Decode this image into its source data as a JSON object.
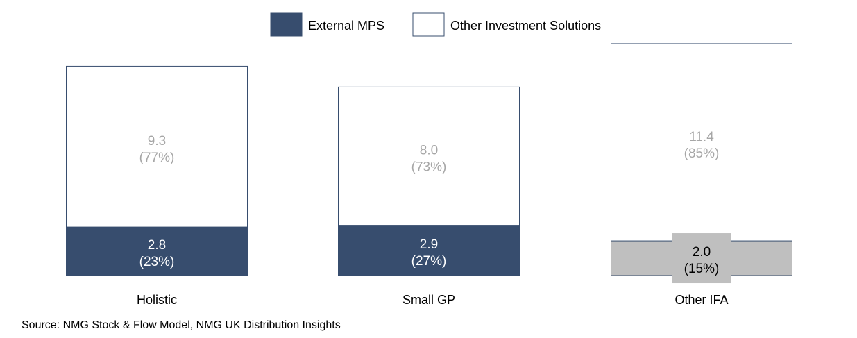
{
  "chart_data": {
    "type": "bar",
    "stacked": true,
    "categories": [
      "Holistic",
      "Small GP",
      "Other IFA"
    ],
    "series": [
      {
        "name": "External MPS",
        "values": [
          2.8,
          2.9,
          2.0
        ],
        "labels": [
          "2.8",
          "2.9",
          "2.0"
        ],
        "pct_labels": [
          "(23%)",
          "(27%)",
          "(15%)"
        ],
        "colors": [
          "#374d6e",
          "#374d6e",
          "#bfbfbf"
        ],
        "text_colors": [
          "#ffffff",
          "#ffffff",
          "#000000"
        ]
      },
      {
        "name": "Other Investment Solutions",
        "values": [
          9.3,
          8.0,
          11.4
        ],
        "labels": [
          "9.3",
          "8.0",
          "11.4"
        ],
        "pct_labels": [
          "(77%)",
          "(73%)",
          "(85%)"
        ],
        "colors": [
          "#ffffff",
          "#ffffff",
          "#ffffff"
        ],
        "text_colors": [
          "#a6a6a6",
          "#a6a6a6",
          "#a6a6a6"
        ]
      }
    ],
    "title": "",
    "xlabel": "",
    "ylabel": "",
    "ylim": [
      0,
      14.3
    ],
    "grid": false,
    "legend": "top-center"
  },
  "legend": {
    "items": [
      {
        "label": "External MPS",
        "color": "#374d6e"
      },
      {
        "label": "Other Investment Solutions",
        "color": "#ffffff"
      }
    ]
  },
  "source": "Source: NMG Stock & Flow Model, NMG UK Distribution Insights",
  "colors": {
    "border": "#374d6e",
    "axis": "#000000"
  }
}
